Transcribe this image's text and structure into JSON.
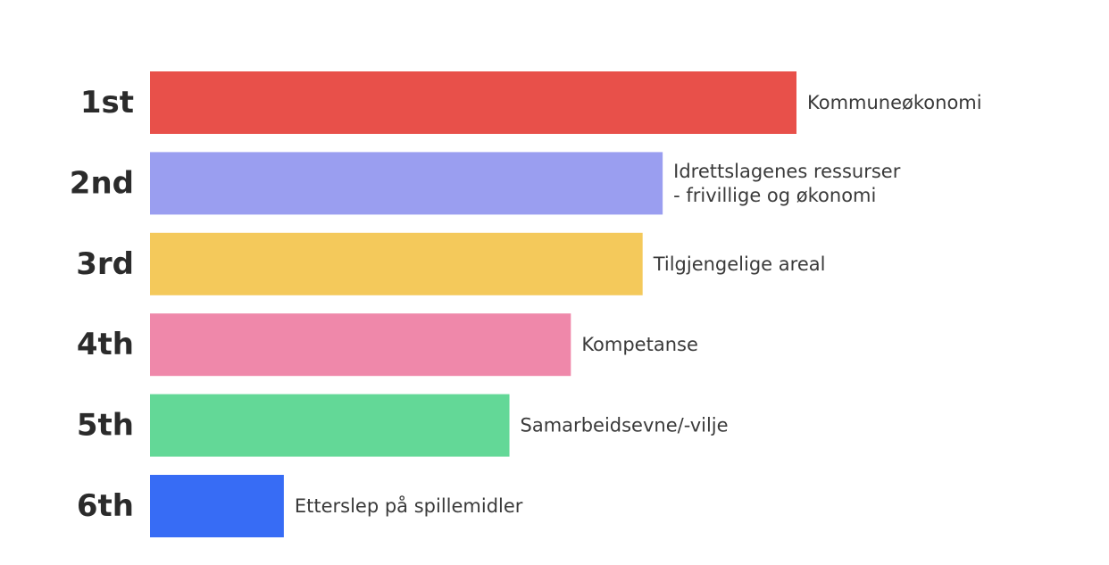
{
  "chart_data": {
    "type": "bar",
    "orientation": "horizontal",
    "ranks": [
      "1st",
      "2nd",
      "3rd",
      "4th",
      "5th",
      "6th"
    ],
    "categories": [
      [
        "Kommuneøkonomi"
      ],
      [
        "Idrettslagenes ressurser",
        "- frivillige og økonomi"
      ],
      [
        "Tilgjengelige areal"
      ],
      [
        "Kompetanse"
      ],
      [
        "Samarbeidsevne/-vilje"
      ],
      [
        "Etterslep på spillemidler"
      ]
    ],
    "values": [
      100,
      79.3,
      76.2,
      65.1,
      55.6,
      20.7
    ],
    "colors": [
      "#e8504a",
      "#9a9ef0",
      "#f4c95b",
      "#ef88aa",
      "#63d897",
      "#376cf5"
    ],
    "title": "",
    "xlabel": "",
    "ylabel": "",
    "xlim": [
      0,
      100
    ],
    "grid": false,
    "legend": "none"
  }
}
